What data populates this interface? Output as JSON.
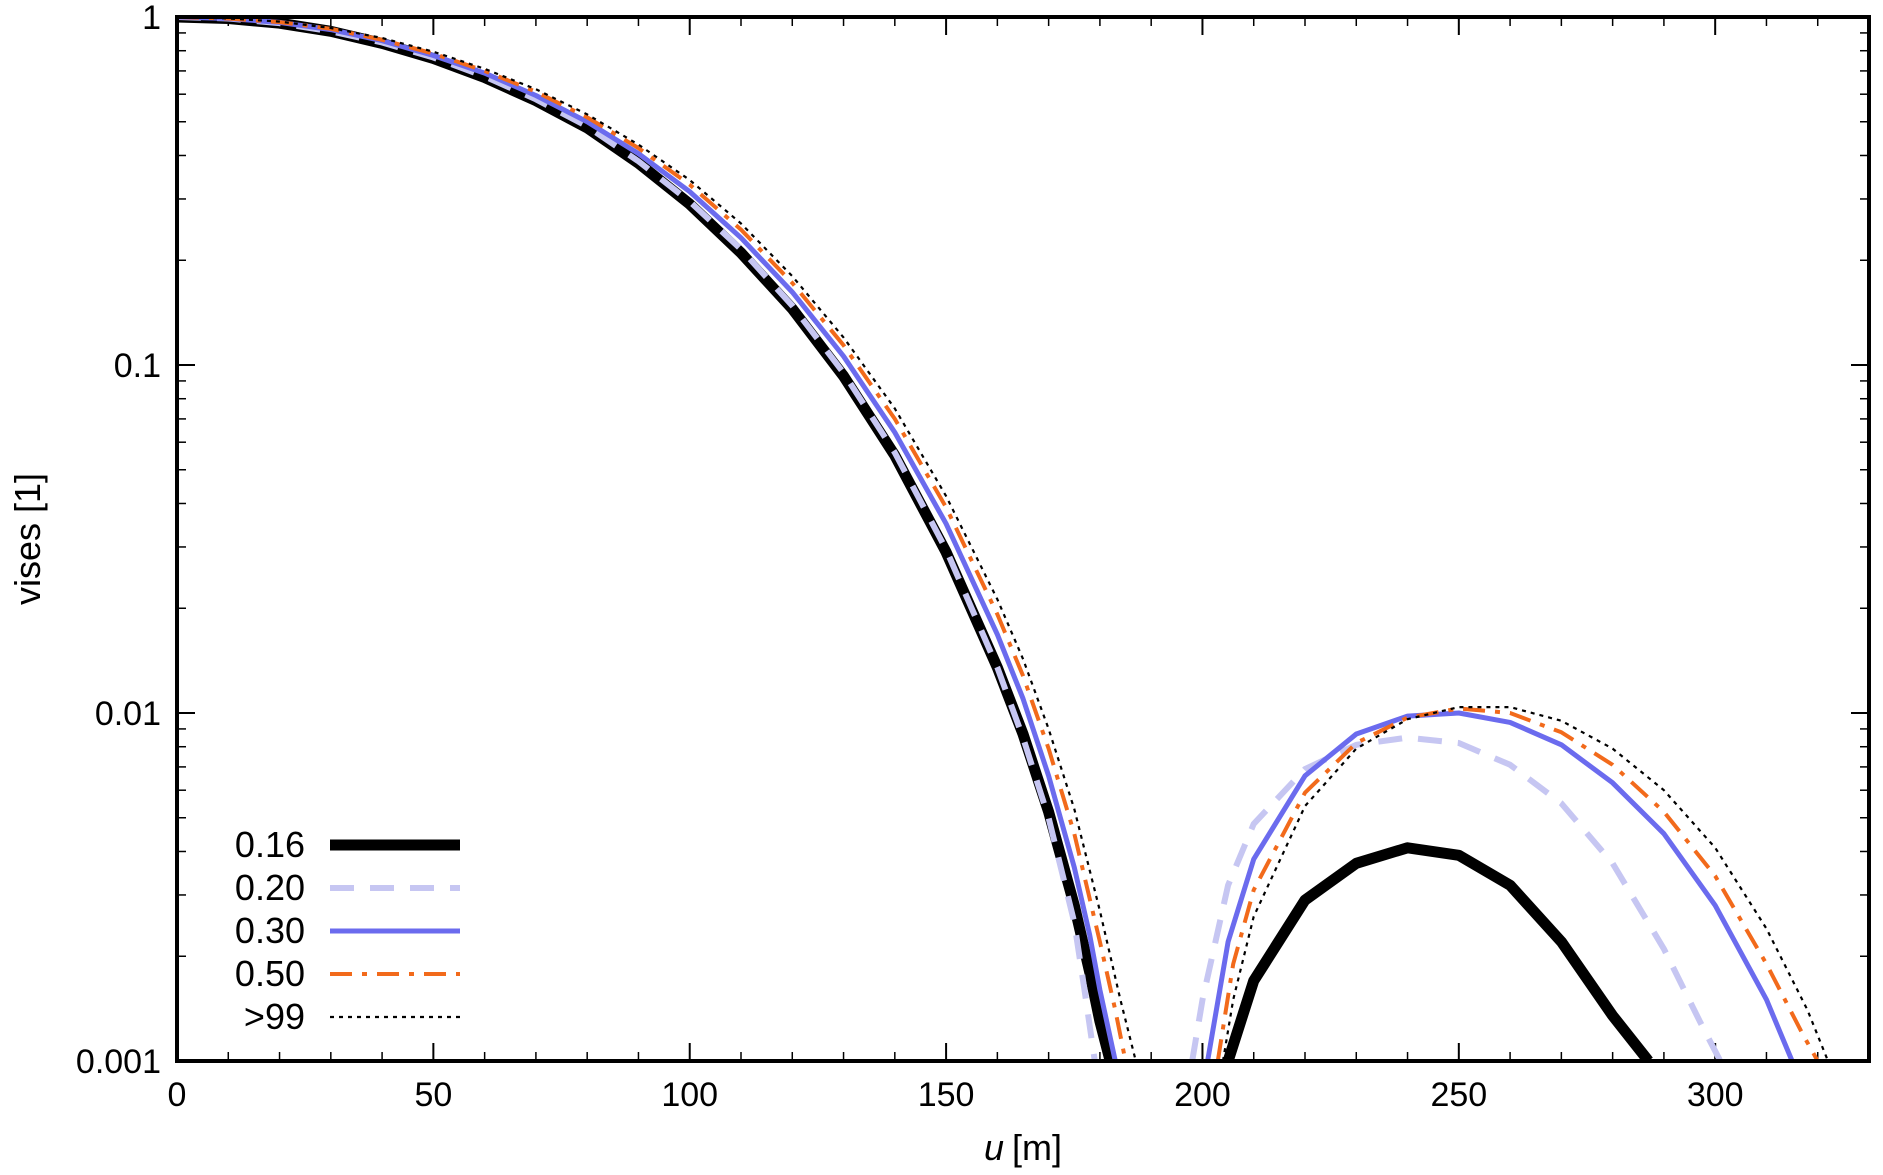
{
  "chart_data": {
    "type": "line",
    "xlabel_var": "u",
    "xlabel_unit": "[m]",
    "ylabel": "vises [1]",
    "xlim": [
      0,
      330
    ],
    "ylim": [
      0.001,
      1
    ],
    "yscale": "log",
    "grid": false,
    "legend_position": "bottom-left",
    "x_ticks": [
      {
        "value": 0,
        "label": "0"
      },
      {
        "value": 50,
        "label": "50"
      },
      {
        "value": 100,
        "label": "100"
      },
      {
        "value": 150,
        "label": "150"
      },
      {
        "value": 200,
        "label": "200"
      },
      {
        "value": 250,
        "label": "250"
      },
      {
        "value": 300,
        "label": "300"
      }
    ],
    "y_ticks": [
      {
        "value": 1,
        "label": "1"
      },
      {
        "value": 0.1,
        "label": "0.1"
      },
      {
        "value": 0.01,
        "label": "0.01"
      },
      {
        "value": 0.001,
        "label": "0.001"
      }
    ],
    "series": [
      {
        "name": "0.16",
        "color": "#000000",
        "style": "solid-thick",
        "x": [
          0,
          10,
          20,
          30,
          40,
          50,
          60,
          70,
          80,
          90,
          100,
          110,
          120,
          130,
          140,
          150,
          160,
          165,
          170,
          175,
          178,
          180,
          182
        ],
        "y": [
          1,
          0.99,
          0.96,
          0.91,
          0.84,
          0.76,
          0.67,
          0.575,
          0.48,
          0.38,
          0.29,
          0.21,
          0.145,
          0.093,
          0.055,
          0.029,
          0.0135,
          0.0087,
          0.0052,
          0.0028,
          0.0018,
          0.0013,
          0.001
        ],
        "x2": [
          205,
          210,
          220,
          230,
          240,
          250,
          260,
          270,
          280,
          287
        ],
        "y2": [
          0.001,
          0.0017,
          0.0029,
          0.0037,
          0.0041,
          0.0039,
          0.0032,
          0.0022,
          0.00135,
          0.001
        ]
      },
      {
        "name": "0.20",
        "color": "#c6c6f2",
        "style": "dashed",
        "x": [
          0,
          10,
          20,
          30,
          40,
          50,
          60,
          70,
          80,
          90,
          100,
          110,
          120,
          130,
          140,
          150,
          160,
          165,
          170,
          175,
          177,
          179
        ],
        "y": [
          1,
          0.99,
          0.96,
          0.91,
          0.845,
          0.765,
          0.675,
          0.58,
          0.485,
          0.385,
          0.295,
          0.215,
          0.148,
          0.095,
          0.056,
          0.0295,
          0.0135,
          0.0085,
          0.005,
          0.0025,
          0.0016,
          0.001
        ],
        "x2": [
          198,
          200,
          205,
          210,
          220,
          230,
          240,
          250,
          260,
          270,
          280,
          290,
          297,
          301
        ],
        "y2": [
          0.001,
          0.0015,
          0.0032,
          0.0048,
          0.0069,
          0.0081,
          0.0085,
          0.0082,
          0.0071,
          0.0055,
          0.0037,
          0.0021,
          0.0013,
          0.001
        ]
      },
      {
        "name": "0.30",
        "color": "#6b6bee",
        "style": "solid",
        "x": [
          0,
          10,
          20,
          30,
          40,
          50,
          60,
          70,
          80,
          90,
          100,
          110,
          120,
          130,
          140,
          150,
          160,
          165,
          170,
          175,
          178,
          180,
          183
        ],
        "y": [
          1,
          0.99,
          0.965,
          0.92,
          0.855,
          0.775,
          0.69,
          0.595,
          0.5,
          0.405,
          0.315,
          0.232,
          0.162,
          0.106,
          0.064,
          0.035,
          0.0168,
          0.011,
          0.0066,
          0.0036,
          0.0023,
          0.0016,
          0.001
        ],
        "x2": [
          201,
          205,
          210,
          220,
          230,
          240,
          250,
          260,
          270,
          280,
          290,
          300,
          310,
          315
        ],
        "y2": [
          0.001,
          0.0022,
          0.0038,
          0.0066,
          0.0087,
          0.0098,
          0.01,
          0.0094,
          0.0081,
          0.0063,
          0.0045,
          0.0028,
          0.0015,
          0.001
        ]
      },
      {
        "name": "0.50",
        "color": "#f26a1b",
        "style": "dash-dot",
        "x": [
          0,
          10,
          20,
          30,
          40,
          50,
          60,
          70,
          80,
          90,
          100,
          110,
          120,
          130,
          140,
          150,
          160,
          165,
          170,
          175,
          180,
          183,
          185
        ],
        "y": [
          1,
          0.99,
          0.967,
          0.925,
          0.86,
          0.785,
          0.7,
          0.61,
          0.515,
          0.42,
          0.33,
          0.245,
          0.172,
          0.114,
          0.07,
          0.039,
          0.0192,
          0.0128,
          0.0079,
          0.0045,
          0.0022,
          0.0014,
          0.001
        ],
        "x2": [
          203,
          206,
          210,
          220,
          230,
          240,
          250,
          260,
          270,
          280,
          290,
          300,
          310,
          317,
          320
        ],
        "y2": [
          0.001,
          0.0019,
          0.0031,
          0.0059,
          0.0082,
          0.0097,
          0.0103,
          0.01,
          0.0088,
          0.0071,
          0.0052,
          0.0034,
          0.0019,
          0.0012,
          0.001
        ]
      },
      {
        "name": ">99",
        "color": "#000000",
        "style": "dotted",
        "x": [
          0,
          10,
          20,
          30,
          40,
          50,
          60,
          70,
          80,
          90,
          100,
          110,
          120,
          130,
          140,
          150,
          160,
          165,
          170,
          175,
          180,
          184,
          187
        ],
        "y": [
          1,
          0.99,
          0.97,
          0.93,
          0.87,
          0.795,
          0.71,
          0.62,
          0.525,
          0.43,
          0.34,
          0.255,
          0.18,
          0.12,
          0.075,
          0.042,
          0.0212,
          0.0143,
          0.009,
          0.0053,
          0.0027,
          0.0015,
          0.001
        ],
        "x2": [
          204,
          206,
          210,
          220,
          230,
          240,
          250,
          260,
          270,
          280,
          290,
          300,
          310,
          318,
          322
        ],
        "y2": [
          0.001,
          0.0015,
          0.0026,
          0.0054,
          0.0079,
          0.0096,
          0.0104,
          0.0104,
          0.0095,
          0.0079,
          0.006,
          0.0041,
          0.0024,
          0.0014,
          0.001
        ]
      }
    ]
  }
}
